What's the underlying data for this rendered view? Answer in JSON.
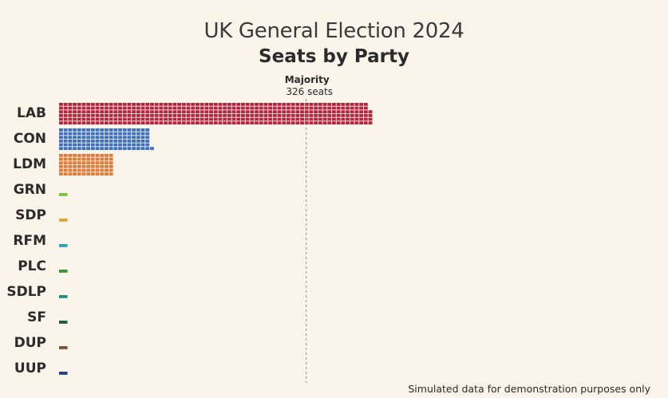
{
  "chart_data": {
    "type": "bar",
    "title": "UK General Election 2024",
    "subtitle": "Seats by Party",
    "categories": [
      "LAB",
      "CON",
      "LDM",
      "GRN",
      "SDP",
      "RFM",
      "PLC",
      "SDLP",
      "SF",
      "DUP",
      "UUP"
    ],
    "values": [
      412,
      121,
      72,
      4,
      4,
      4,
      4,
      4,
      4,
      4,
      4
    ],
    "colors": [
      "#b5233e",
      "#3d6fbf",
      "#e07b39",
      "#7fbf3f",
      "#e2a33a",
      "#2f9fb7",
      "#3c8f3c",
      "#1f8e7e",
      "#1f5a3a",
      "#7a5437",
      "#223f7a"
    ],
    "annotation": {
      "label": "Majority",
      "value": 326,
      "text": "326 seats"
    },
    "footnote": "Simulated data for demonstration purposes only"
  }
}
